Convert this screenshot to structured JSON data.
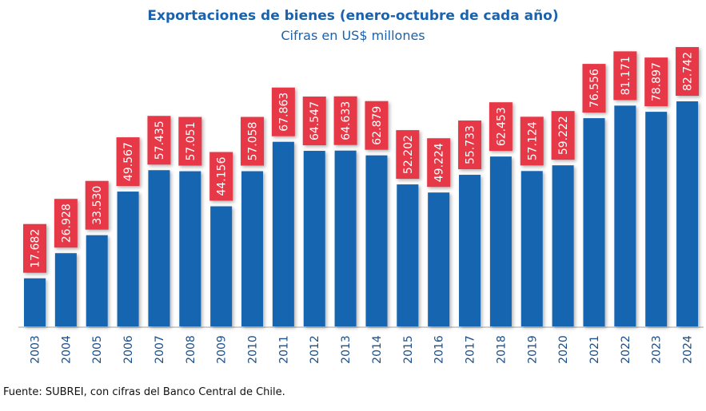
{
  "chart_data": {
    "type": "bar",
    "title": "Exportaciones de bienes (enero-octubre de cada año)",
    "subtitle": "Cifras en US$ millones",
    "source": "Fuente: SUBREI, con cifras del Banco Central de Chile.",
    "xlabel": "",
    "ylabel": "",
    "ylim": [
      0,
      82742
    ],
    "categories": [
      "2003",
      "2004",
      "2005",
      "2006",
      "2007",
      "2008",
      "2009",
      "2010",
      "2011",
      "2012",
      "2013",
      "2014",
      "2015",
      "2016",
      "2017",
      "2018",
      "2019",
      "2020",
      "2021",
      "2022",
      "2023",
      "2024"
    ],
    "values": [
      17682,
      26928,
      33530,
      49567,
      57435,
      57051,
      44156,
      57058,
      67863,
      64547,
      64633,
      62879,
      52202,
      49224,
      55733,
      62453,
      57124,
      59222,
      76556,
      81171,
      78897,
      82742
    ],
    "data_labels": [
      "17.682",
      "26.928",
      "33.530",
      "49.567",
      "57.435",
      "57.051",
      "44.156",
      "57.058",
      "67.863",
      "64.547",
      "64.633",
      "62.879",
      "52.202",
      "49.224",
      "55.733",
      "62.453",
      "57.124",
      "59.222",
      "76.556",
      "81.171",
      "78.897",
      "82.742"
    ],
    "colors": {
      "bar": "#1565b0",
      "label_box": "#e63946",
      "label_text": "#ffffff",
      "axis_text": "#1a4f8a",
      "title": "#1a62ad"
    }
  }
}
